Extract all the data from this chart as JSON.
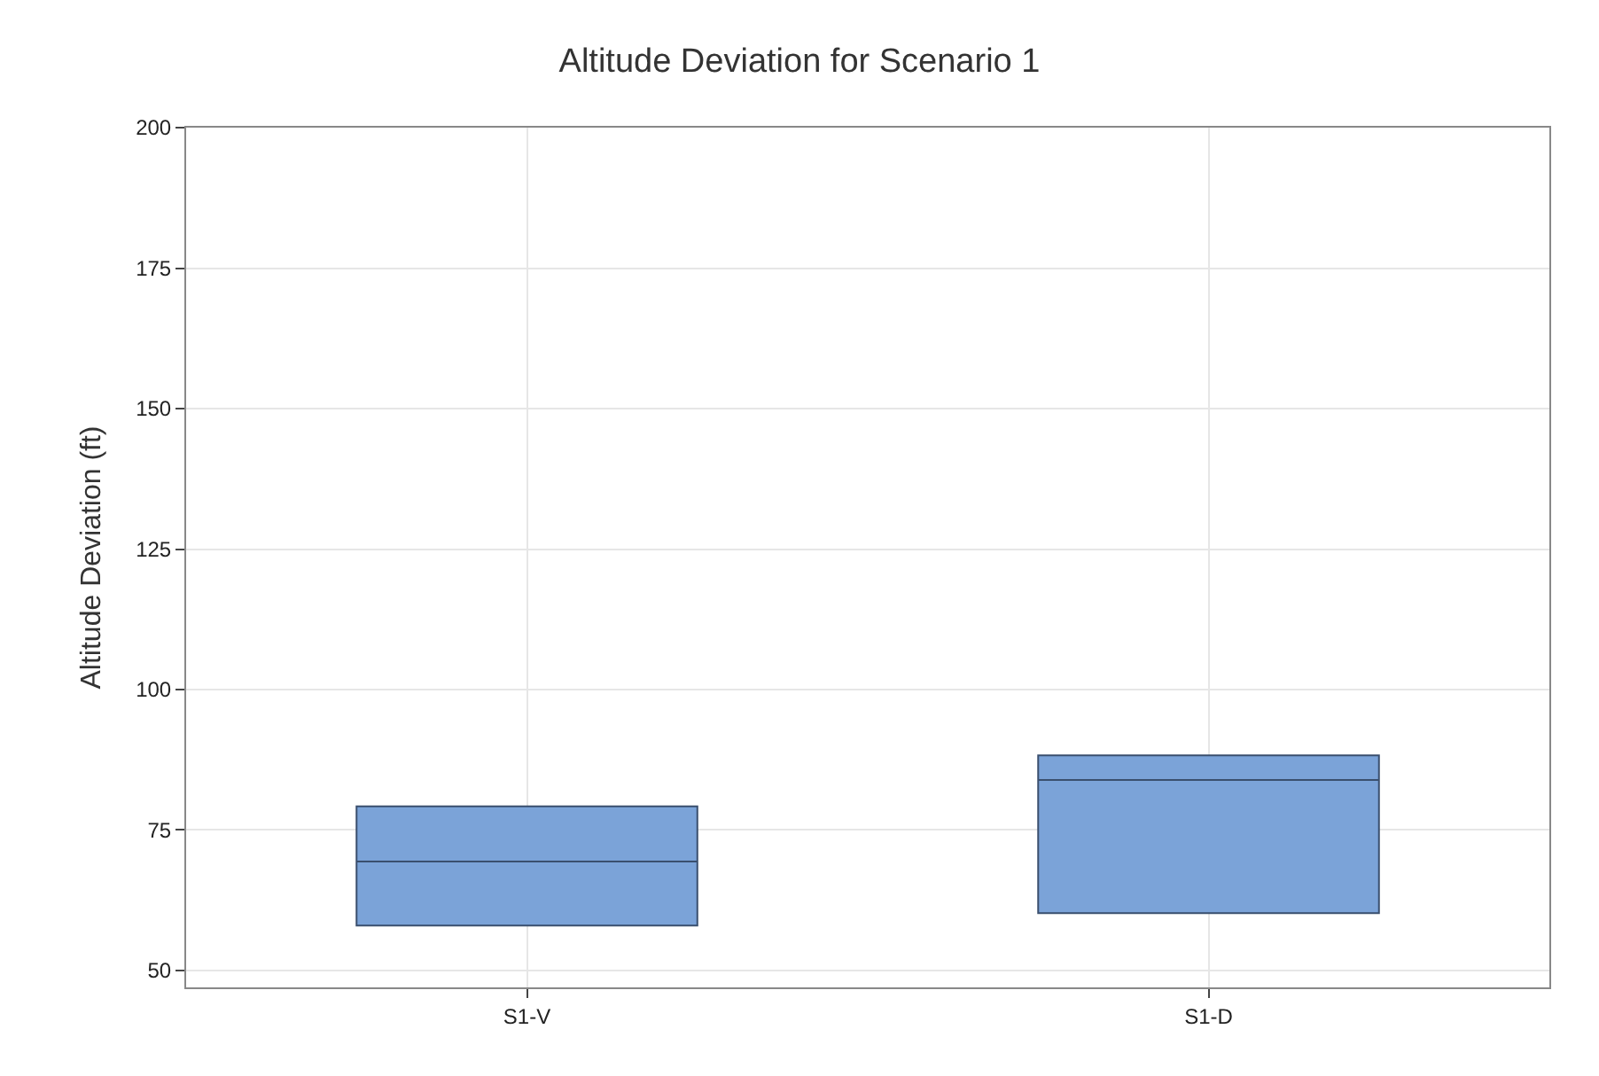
{
  "chart_data": {
    "type": "box",
    "title": "Altitude Deviation for Scenario 1",
    "ylabel": "Altitude Deviation (ft)",
    "categories": [
      "S1-V",
      "S1-D"
    ],
    "boxes": [
      {
        "q1": 58,
        "median": 69.4,
        "q3": 79.2
      },
      {
        "q1": 60.2,
        "median": 83.9,
        "q3": 88.3
      }
    ],
    "color": "#7ba3d8",
    "ylim": [
      47,
      200
    ],
    "yticks": [
      50,
      75,
      100,
      125,
      150,
      175,
      200
    ],
    "grid": true
  }
}
